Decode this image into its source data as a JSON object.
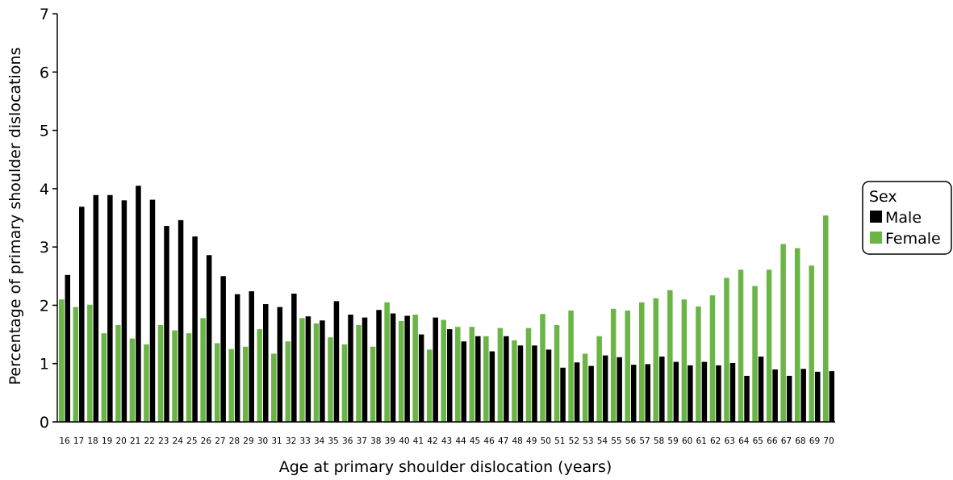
{
  "chart_data": {
    "type": "bar",
    "xlabel": "Age at primary shoulder dislocation (years)",
    "ylabel": "Percentage of primary shoulder dislocations",
    "ylim": [
      0,
      7
    ],
    "yticks": [
      "0",
      "1",
      "2",
      "3",
      "4",
      "5",
      "6",
      "7"
    ],
    "categories": [
      "16",
      "17",
      "18",
      "19",
      "20",
      "21",
      "22",
      "23",
      "24",
      "25",
      "26",
      "27",
      "28",
      "29",
      "30",
      "31",
      "32",
      "33",
      "34",
      "35",
      "36",
      "37",
      "38",
      "39",
      "40",
      "41",
      "42",
      "43",
      "44",
      "45",
      "46",
      "47",
      "48",
      "49",
      "50",
      "51",
      "52",
      "53",
      "54",
      "55",
      "56",
      "57",
      "58",
      "59",
      "60",
      "61",
      "62",
      "63",
      "64",
      "65",
      "66",
      "67",
      "68",
      "69",
      "70"
    ],
    "legend": {
      "title": "Sex",
      "position": "right"
    },
    "series": [
      {
        "name": "Female",
        "color": "#6ab545",
        "values": [
          2.1,
          1.97,
          2.01,
          1.52,
          1.66,
          1.43,
          1.33,
          1.66,
          1.57,
          1.52,
          1.78,
          1.35,
          1.25,
          1.29,
          1.59,
          1.17,
          1.38,
          1.78,
          1.69,
          1.45,
          1.33,
          1.66,
          1.29,
          2.05,
          1.73,
          1.84,
          1.24,
          1.75,
          1.63,
          1.63,
          1.47,
          1.61,
          1.4,
          1.61,
          1.85,
          1.66,
          1.91,
          1.17,
          1.47,
          1.94,
          1.91,
          2.05,
          2.12,
          2.26,
          2.1,
          1.98,
          2.17,
          2.47,
          2.61,
          2.33,
          2.61,
          3.05,
          2.98,
          2.68,
          3.54
        ]
      },
      {
        "name": "Male",
        "color": "#000000",
        "values": [
          2.52,
          3.69,
          3.89,
          3.89,
          3.8,
          4.05,
          3.81,
          3.36,
          3.46,
          3.18,
          2.86,
          2.5,
          2.19,
          2.24,
          2.02,
          1.97,
          2.2,
          1.81,
          1.74,
          2.07,
          1.84,
          1.79,
          1.92,
          1.86,
          1.82,
          1.5,
          1.79,
          1.59,
          1.38,
          1.47,
          1.21,
          1.47,
          1.31,
          1.31,
          1.24,
          0.93,
          1.02,
          0.96,
          1.14,
          1.11,
          0.98,
          0.99,
          1.12,
          1.03,
          0.97,
          1.03,
          0.97,
          1.01,
          0.79,
          1.12,
          0.9,
          0.79,
          0.91,
          0.86,
          0.87
        ]
      }
    ]
  }
}
